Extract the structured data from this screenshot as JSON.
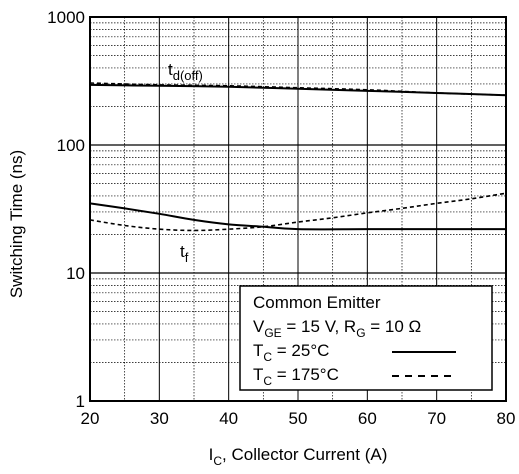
{
  "chart_data": {
    "type": "line",
    "title": "",
    "xlabel": {
      "main": "I",
      "sub": "C",
      "rest": ", Collector Current (A)"
    },
    "ylabel": "Switching Time (ns)",
    "xlim": [
      20,
      80
    ],
    "ylim": [
      1,
      1000
    ],
    "yscale": "log",
    "grid": true,
    "x_ticks": [
      "20",
      "30",
      "40",
      "50",
      "60",
      "70",
      "80"
    ],
    "y_ticks": [
      "1",
      "10",
      "100",
      "1000"
    ],
    "legend_position": "bottom-right",
    "legend": {
      "title": "Common Emitter",
      "conditions": {
        "v_main": "V",
        "v_sub": "GE",
        "v_mid": " = 15 V, R",
        "r_sub": "G",
        "r_end": " = 10 Ω"
      },
      "entries": [
        {
          "main": "T",
          "sub": "C",
          "rest": " = 25°C",
          "style": "solid"
        },
        {
          "main": "T",
          "sub": "C",
          "rest": " =  175°C",
          "style": "dashed"
        }
      ]
    },
    "annotations": [
      {
        "main": "t",
        "sub": "d(off)"
      },
      {
        "main": "t",
        "sub": "f"
      }
    ],
    "series": [
      {
        "curve": "td_off",
        "style": "solid",
        "x": [
          20,
          30,
          40,
          50,
          60,
          70,
          80
        ],
        "values": [
          295,
          290,
          285,
          275,
          265,
          255,
          245
        ]
      },
      {
        "curve": "td_off",
        "style": "dashed",
        "x": [
          20,
          30,
          40,
          50,
          60,
          70,
          80
        ],
        "values": [
          305,
          295,
          290,
          280,
          270,
          255,
          245
        ]
      },
      {
        "curve": "tf",
        "style": "solid",
        "x": [
          20,
          25,
          30,
          35,
          40,
          45,
          50,
          60,
          70,
          80
        ],
        "values": [
          35,
          32,
          29,
          26,
          24,
          23,
          22,
          22,
          22,
          22
        ]
      },
      {
        "curve": "tf",
        "style": "dashed",
        "x": [
          20,
          25,
          30,
          35,
          40,
          45,
          50,
          55,
          60,
          65,
          70,
          75,
          80
        ],
        "values": [
          26,
          23.5,
          22,
          21.5,
          22,
          23,
          25,
          27,
          29.5,
          32,
          35,
          38,
          42
        ]
      }
    ]
  }
}
